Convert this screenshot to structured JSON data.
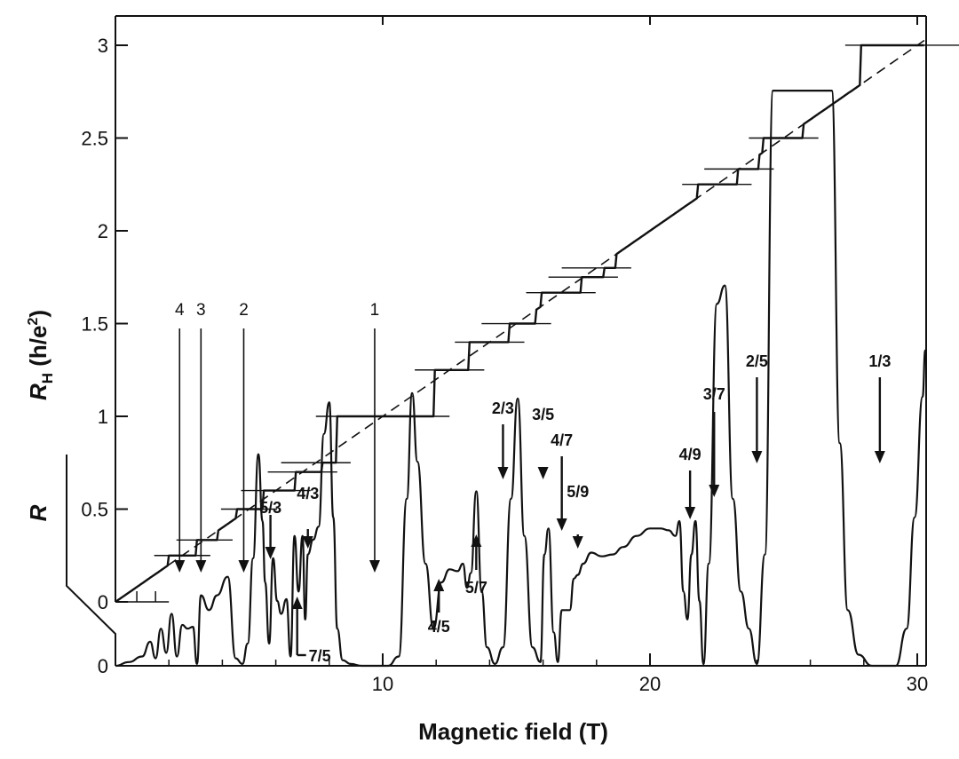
{
  "chart_data": {
    "type": "line",
    "title": "",
    "xlabel": "Magnetic field (T)",
    "ylabel_hall": "R_H (h/e^2)",
    "ylabel_hall_parts": {
      "main": "R",
      "sub": "H",
      "unit_open": " (h/e",
      "unit_sup": "2",
      "unit_close": ")"
    },
    "ylabel_r": "R",
    "xlim": [
      0,
      30.3
    ],
    "ylim_hall": [
      0,
      3.1
    ],
    "xticks": [
      10,
      20,
      30
    ],
    "xtick_labels": [
      "10",
      "20",
      "30"
    ],
    "yticks_hall": [
      0,
      0.5,
      1,
      1.5,
      2,
      2.5,
      3
    ],
    "ytick_labels_hall": [
      "0",
      "0.5",
      "1",
      "1.5",
      "2",
      "2.5",
      "3"
    ],
    "ytick_label_r_zero": "0",
    "grid": false,
    "series": [
      {
        "role": "hall-resistance-plateaus",
        "plateaus_nu": [
          4,
          3,
          2,
          1.6667,
          1.4286,
          1.3333,
          1,
          0.8,
          0.7143,
          0.6667,
          0.6,
          0.5714,
          0.5556,
          0.4444,
          0.4286,
          0.4,
          0.3333
        ]
      },
      {
        "role": "classical-hall-line",
        "style": "dashed",
        "x": [
          0,
          30.3
        ],
        "y": [
          0,
          3.03
        ]
      },
      {
        "role": "longitudinal-resistance",
        "x": [
          0,
          0.5,
          1.0,
          1.3,
          1.5,
          1.7,
          1.9,
          2.1,
          2.3,
          2.5,
          2.7,
          2.9,
          3.05,
          3.2,
          3.5,
          3.8,
          4.2,
          4.5,
          4.75,
          4.95,
          5.15,
          5.35,
          5.5,
          5.6,
          5.75,
          5.9,
          6.05,
          6.2,
          6.4,
          6.55,
          6.7,
          6.85,
          7.0,
          7.1,
          7.2,
          7.4,
          7.6,
          7.8,
          8.0,
          8.15,
          8.3,
          8.5,
          8.8,
          9.2,
          9.6,
          10.2,
          10.6,
          10.9,
          11.1,
          11.3,
          11.6,
          11.9,
          12.2,
          12.5,
          12.8,
          13.0,
          13.15,
          13.3,
          13.5,
          13.7,
          13.9,
          14.2,
          14.5,
          14.8,
          15.05,
          15.3,
          15.6,
          15.9,
          16.05,
          16.2,
          16.4,
          16.55,
          16.7,
          16.85,
          17.0,
          17.15,
          17.3,
          17.5,
          17.8,
          18.2,
          18.6,
          19.0,
          19.5,
          20.0,
          20.4,
          20.7,
          20.95,
          21.1,
          21.25,
          21.4,
          21.55,
          21.7,
          21.85,
          22.0,
          22.2,
          22.5,
          22.8,
          23.1,
          23.4,
          23.7,
          24.0,
          24.3,
          24.6,
          24.85,
          25.0,
          26.0,
          26.8,
          27.1,
          27.4,
          27.8,
          28.3,
          28.8,
          29.2,
          29.6,
          29.9,
          30.2,
          30.3
        ],
        "y": [
          0.0,
          0.02,
          0.05,
          0.13,
          0.04,
          0.2,
          0.07,
          0.28,
          0.05,
          0.22,
          0.2,
          0.21,
          0.01,
          0.38,
          0.3,
          0.38,
          0.48,
          0.04,
          0.01,
          0.12,
          0.58,
          1.14,
          0.78,
          0.45,
          0.12,
          0.58,
          0.35,
          0.28,
          0.36,
          0.05,
          0.7,
          0.4,
          0.7,
          0.25,
          0.6,
          0.68,
          0.75,
          1.25,
          1.42,
          0.8,
          0.2,
          0.03,
          0.01,
          0.0,
          0.0,
          0.0,
          0.05,
          0.9,
          1.47,
          1.1,
          0.55,
          0.2,
          0.45,
          0.52,
          0.51,
          0.55,
          0.42,
          0.5,
          0.94,
          0.4,
          0.1,
          0.01,
          0.1,
          0.9,
          1.44,
          0.7,
          0.1,
          0.02,
          0.6,
          0.74,
          0.18,
          0.02,
          0.3,
          0.3,
          0.3,
          0.47,
          0.49,
          0.55,
          0.61,
          0.59,
          0.6,
          0.64,
          0.7,
          0.74,
          0.74,
          0.73,
          0.7,
          0.78,
          0.4,
          0.25,
          0.6,
          0.78,
          0.35,
          0.01,
          0.55,
          1.95,
          2.05,
          0.9,
          0.4,
          0.2,
          0.01,
          0.6,
          3.1,
          3.1,
          3.1,
          3.1,
          3.1,
          1.2,
          0.3,
          0.06,
          0.0,
          0.0,
          0.0,
          0.2,
          0.8,
          1.45,
          1.7
        ]
      }
    ],
    "annotations": [
      {
        "label": "4",
        "x": 2.4,
        "direction": "down",
        "style": "thin"
      },
      {
        "label": "3",
        "x": 3.2,
        "direction": "down",
        "style": "thin"
      },
      {
        "label": "2",
        "x": 4.8,
        "direction": "down",
        "style": "thin"
      },
      {
        "label": "1",
        "x": 9.7,
        "direction": "down",
        "style": "thin"
      },
      {
        "label": "5/3",
        "x": 5.8,
        "direction": "down",
        "style": "bold"
      },
      {
        "label": "4/3",
        "x": 7.2,
        "direction": "down",
        "style": "bold"
      },
      {
        "label": "7/5",
        "x": 6.8,
        "direction": "up",
        "style": "bold"
      },
      {
        "label": "4/5",
        "x": 12.1,
        "direction": "up",
        "style": "bold"
      },
      {
        "label": "5/7",
        "x": 13.5,
        "direction": "up",
        "style": "bold"
      },
      {
        "label": "2/3",
        "x": 14.5,
        "direction": "down",
        "style": "bold"
      },
      {
        "label": "3/5",
        "x": 16.0,
        "direction": "down",
        "style": "bold"
      },
      {
        "label": "4/7",
        "x": 16.7,
        "direction": "down",
        "style": "bold"
      },
      {
        "label": "5/9",
        "x": 17.3,
        "direction": "down",
        "style": "bold"
      },
      {
        "label": "4/9",
        "x": 21.5,
        "direction": "down",
        "style": "bold"
      },
      {
        "label": "3/7",
        "x": 22.4,
        "direction": "down",
        "style": "bold"
      },
      {
        "label": "2/5",
        "x": 24.0,
        "direction": "down",
        "style": "bold"
      },
      {
        "label": "1/3",
        "x": 28.6,
        "direction": "down",
        "style": "bold"
      }
    ]
  }
}
